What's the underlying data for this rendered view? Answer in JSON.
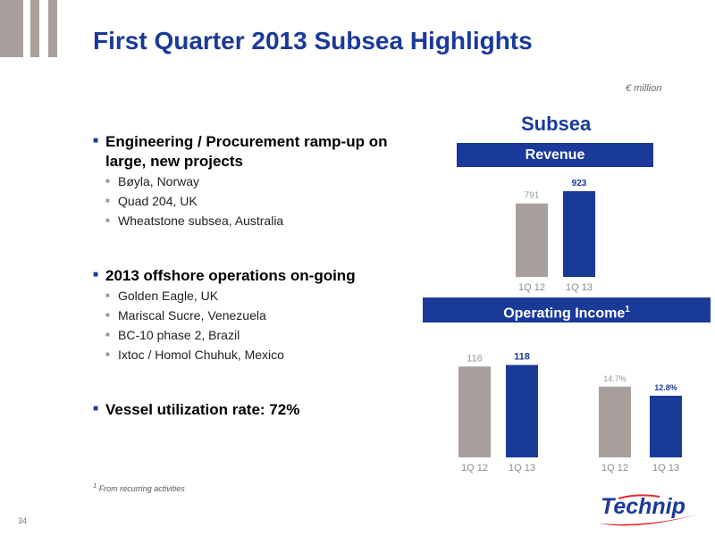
{
  "title": "First Quarter 2013 Subsea Highlights",
  "unit": "€ million",
  "bullets": [
    {
      "text": "Engineering / Procurement ramp-up on large, new projects",
      "items": [
        "Bøyla, Norway",
        "Quad 204, UK",
        "Wheatstone subsea, Australia"
      ]
    },
    {
      "text": "2013 offshore operations on-going",
      "items": [
        "Golden Eagle, UK",
        "Mariscal Sucre, Venezuela",
        "BC-10 phase 2, Brazil",
        "Ixtoc / Homol Chuhuk, Mexico"
      ]
    },
    {
      "text": "Vessel utilization rate: 72%",
      "items": []
    }
  ],
  "segment_title": "Subsea",
  "revenue_banner": "Revenue",
  "operating_income_banner": "Operating Income",
  "operating_income_sup": "1",
  "footnote_marker": "1",
  "footnote": "From recurring activities",
  "page_number": "34",
  "logo_text": "Technip",
  "colors": {
    "brand_blue": "#1a3a9a",
    "bar_gray": "#a8a09c",
    "label_gray": "#9a9a9a"
  },
  "chart_data": [
    {
      "type": "bar",
      "categories": [
        "1Q 12",
        "1Q 13"
      ],
      "values": [
        791,
        923
      ],
      "value_labels": [
        "791",
        "923"
      ],
      "ylim": [
        0,
        1000
      ]
    },
    {
      "type": "bar",
      "categories": [
        "1Q 12",
        "1Q 13"
      ],
      "values": [
        116,
        118
      ],
      "value_labels": [
        "116",
        "118"
      ],
      "ylim": [
        0,
        130
      ]
    },
    {
      "type": "bar",
      "categories": [
        "1Q 12",
        "1Q 13"
      ],
      "values": [
        14.7,
        12.8
      ],
      "value_labels": [
        "14.7%",
        "12.8%"
      ],
      "ylim": [
        0,
        18
      ]
    }
  ]
}
